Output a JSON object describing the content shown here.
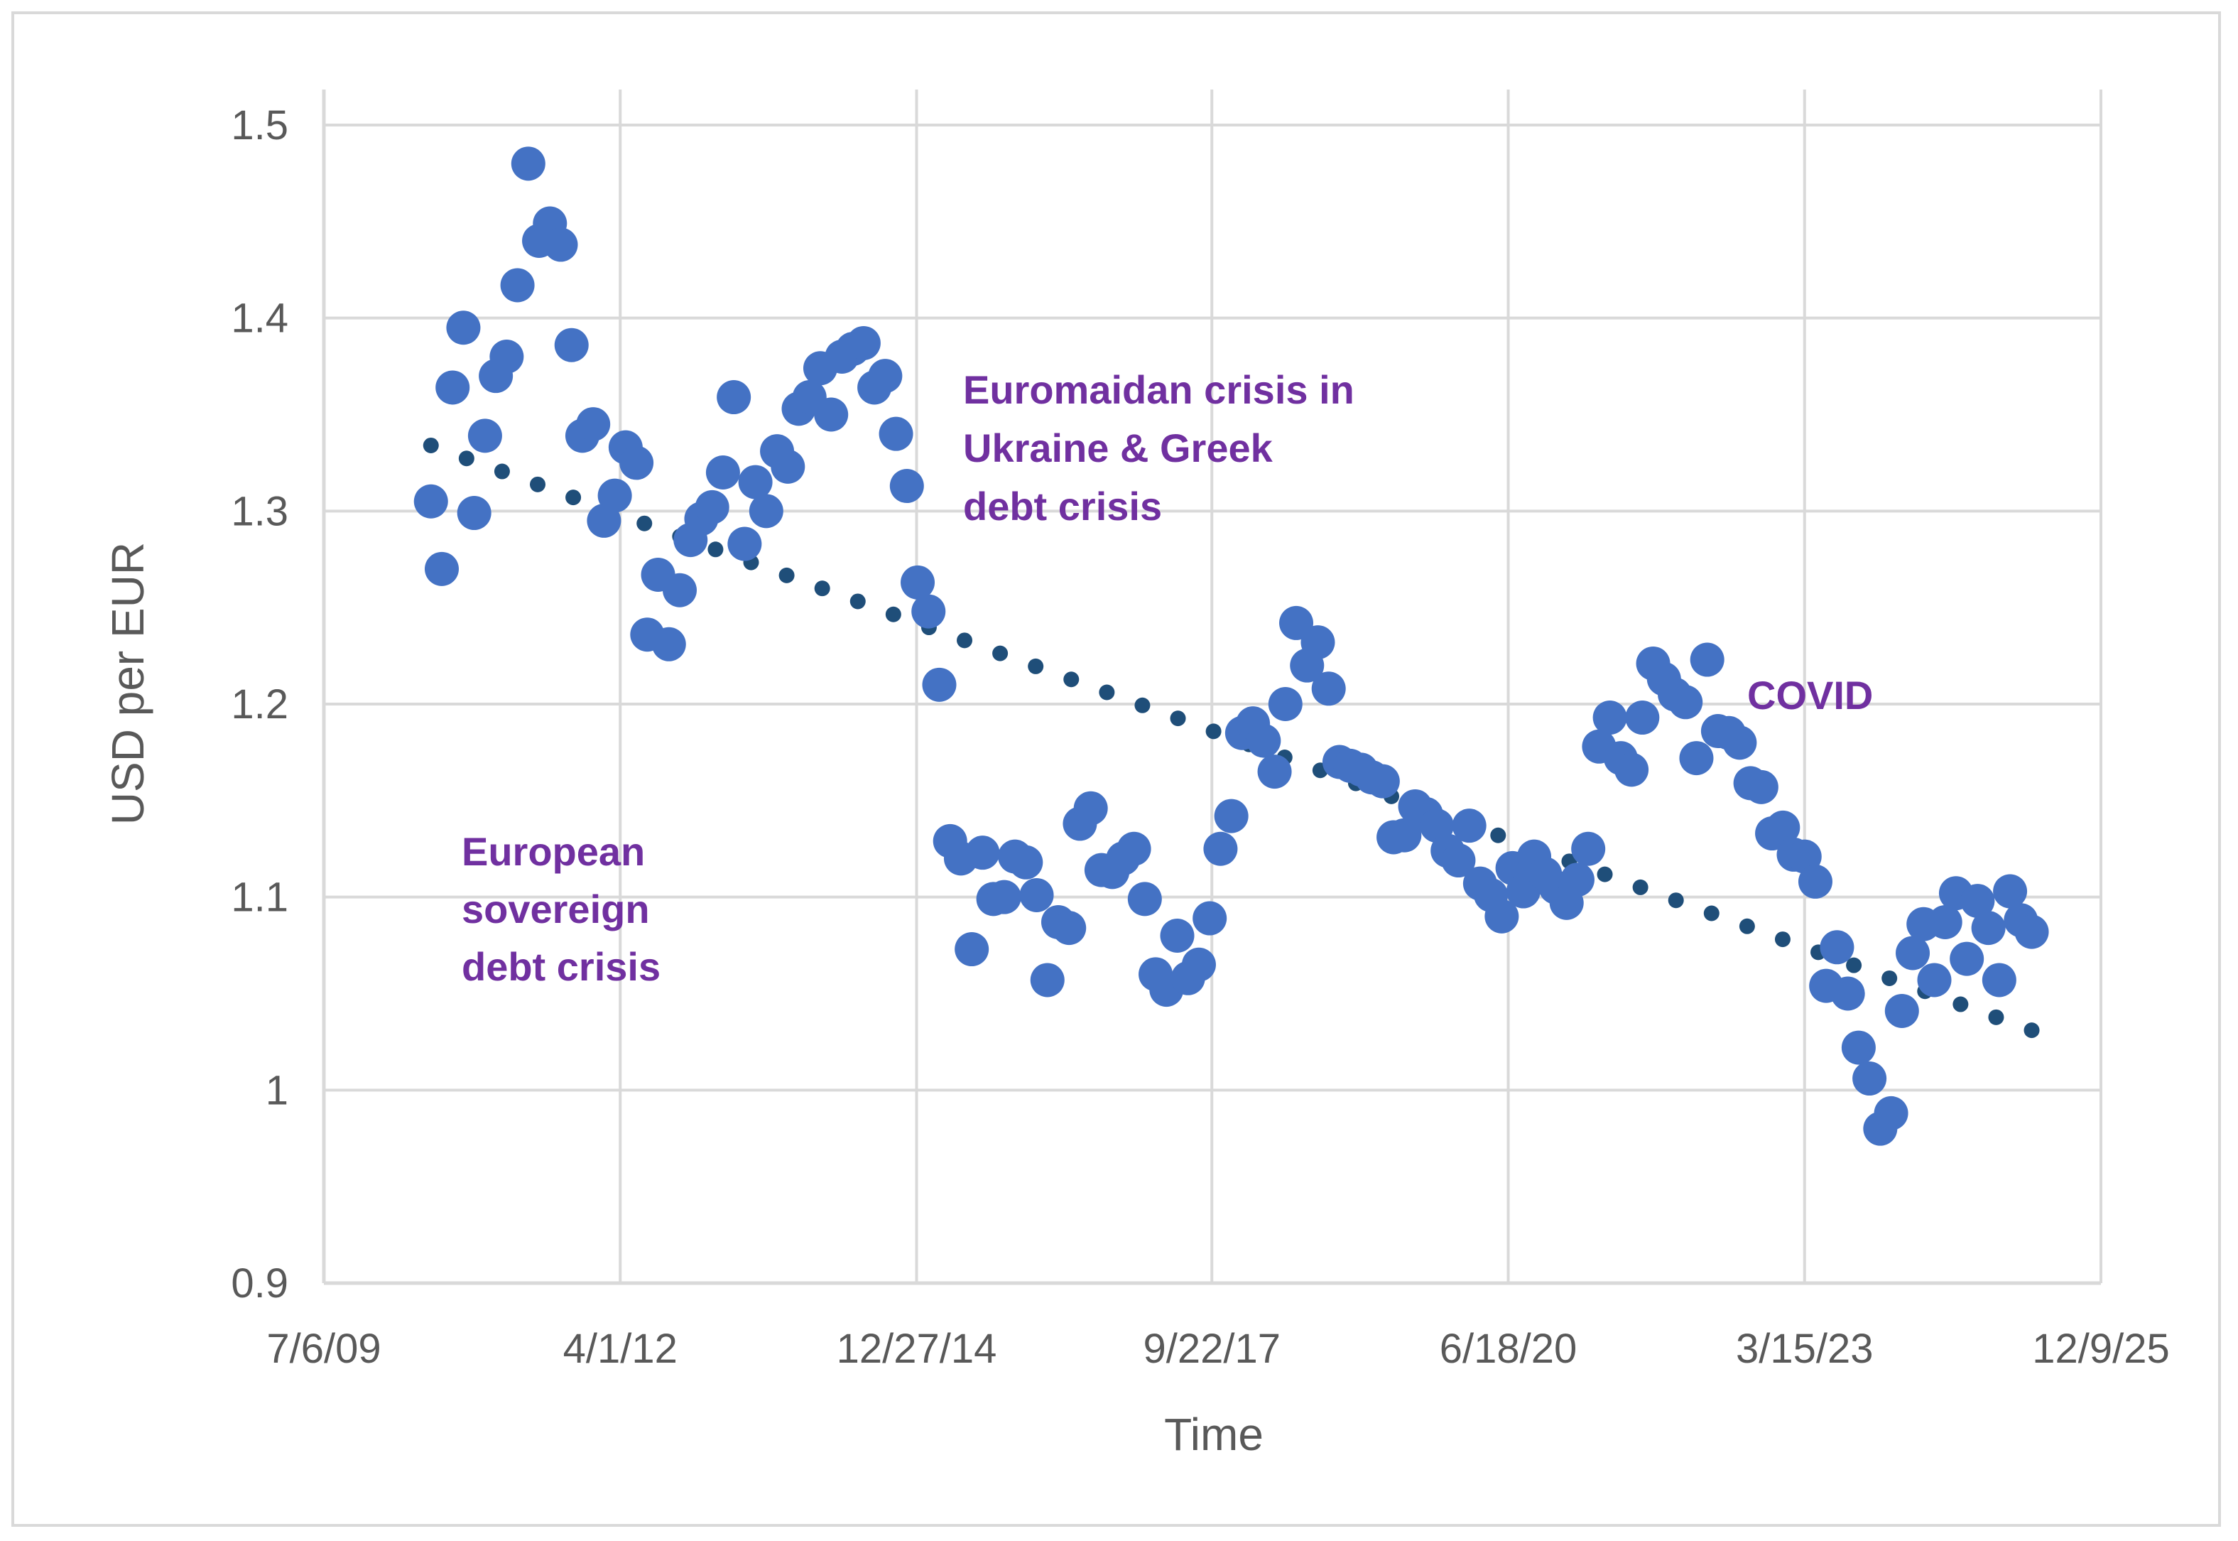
{
  "chart_data": {
    "type": "scatter",
    "title": "",
    "xlabel": "Time",
    "ylabel": "USD per EUR",
    "ylim": [
      0.9,
      1.5
    ],
    "y_ticks": [
      0.9,
      1,
      1.1,
      1.2,
      1.3,
      1.4,
      1.5
    ],
    "y_tick_labels": [
      "0.9",
      "1",
      "1.1",
      "1.2",
      "1.3",
      "1.4",
      "1.5"
    ],
    "x_tick_values": [
      2009.51,
      2012.25,
      2014.99,
      2017.72,
      2020.46,
      2023.2,
      2025.94
    ],
    "x_tick_labels": [
      "7/6/09",
      "4/1/12",
      "12/27/14",
      "9/22/17",
      "6/18/20",
      "3/15/23",
      "12/9/25"
    ],
    "xlim": [
      2009.51,
      2025.94
    ],
    "grid": true,
    "colors": {
      "points": "#4472c4",
      "trend": "#1f4e79",
      "annotation": "#7030a0",
      "grid": "#d9d9d9",
      "text": "#595959"
    },
    "series": [
      {
        "name": "USD per EUR",
        "x": [
          2010.5,
          2010.6,
          2010.7,
          2010.8,
          2010.9,
          2011.0,
          2011.1,
          2011.2,
          2011.3,
          2011.4,
          2011.5,
          2011.6,
          2011.7,
          2011.8,
          2011.9,
          2012.0,
          2012.1,
          2012.2,
          2012.3,
          2012.4,
          2012.5,
          2012.6,
          2012.7,
          2012.8,
          2012.9,
          2013.0,
          2013.1,
          2013.2,
          2013.3,
          2013.4,
          2013.5,
          2013.6,
          2013.7,
          2013.8,
          2013.9,
          2014.0,
          2014.1,
          2014.2,
          2014.3,
          2014.4,
          2014.5,
          2014.6,
          2014.7,
          2014.8,
          2014.9,
          2015.0,
          2015.1,
          2015.2,
          2015.3,
          2015.4,
          2015.5,
          2015.6,
          2015.7,
          2015.8,
          2015.9,
          2016.0,
          2016.1,
          2016.2,
          2016.3,
          2016.4,
          2016.5,
          2016.6,
          2016.7,
          2016.8,
          2016.9,
          2017.0,
          2017.1,
          2017.2,
          2017.3,
          2017.4,
          2017.5,
          2017.6,
          2017.7,
          2017.8,
          2017.9,
          2018.0,
          2018.1,
          2018.2,
          2018.3,
          2018.4,
          2018.5,
          2018.6,
          2018.7,
          2018.8,
          2018.9,
          2019.0,
          2019.1,
          2019.2,
          2019.3,
          2019.4,
          2019.5,
          2019.6,
          2019.7,
          2019.8,
          2019.9,
          2020.0,
          2020.1,
          2020.2,
          2020.3,
          2020.4,
          2020.5,
          2020.6,
          2020.7,
          2020.8,
          2020.9,
          2021.0,
          2021.1,
          2021.2,
          2021.3,
          2021.4,
          2021.5,
          2021.6,
          2021.7,
          2021.8,
          2021.9,
          2022.0,
          2022.1,
          2022.2,
          2022.3,
          2022.4,
          2022.5,
          2022.6,
          2022.7,
          2022.8,
          2022.9,
          2023.0,
          2023.1,
          2023.2,
          2023.3,
          2023.4,
          2023.5,
          2023.6,
          2023.7,
          2023.8,
          2023.9,
          2024.0,
          2024.1,
          2024.2,
          2024.3,
          2024.4,
          2024.5,
          2024.6,
          2024.7,
          2024.8,
          2024.9,
          2025.0,
          2025.1,
          2025.2,
          2025.3
        ],
        "y": [
          1.305,
          1.27,
          1.364,
          1.395,
          1.299,
          1.339,
          1.37,
          1.38,
          1.417,
          1.48,
          1.44,
          1.449,
          1.438,
          1.386,
          1.339,
          1.345,
          1.295,
          1.308,
          1.333,
          1.325,
          1.236,
          1.267,
          1.231,
          1.259,
          1.285,
          1.296,
          1.302,
          1.32,
          1.359,
          1.283,
          1.315,
          1.3,
          1.331,
          1.323,
          1.353,
          1.359,
          1.374,
          1.35,
          1.38,
          1.384,
          1.387,
          1.364,
          1.37,
          1.34,
          1.313,
          1.263,
          1.248,
          1.21,
          1.129,
          1.12,
          1.073,
          1.123,
          1.099,
          1.1,
          1.121,
          1.118,
          1.101,
          1.057,
          1.087,
          1.084,
          1.138,
          1.146,
          1.114,
          1.113,
          1.12,
          1.125,
          1.099,
          1.06,
          1.052,
          1.08,
          1.058,
          1.065,
          1.089,
          1.125,
          1.142,
          1.185,
          1.19,
          1.181,
          1.165,
          1.2,
          1.242,
          1.22,
          1.232,
          1.208,
          1.17,
          1.168,
          1.166,
          1.162,
          1.16,
          1.131,
          1.132,
          1.147,
          1.143,
          1.137,
          1.124,
          1.119,
          1.137,
          1.107,
          1.101,
          1.09,
          1.115,
          1.103,
          1.121,
          1.112,
          1.105,
          1.097,
          1.109,
          1.125,
          1.178,
          1.193,
          1.172,
          1.166,
          1.193,
          1.221,
          1.213,
          1.205,
          1.201,
          1.172,
          1.223,
          1.186,
          1.185,
          1.18,
          1.159,
          1.157,
          1.133,
          1.136,
          1.122,
          1.121,
          1.108,
          1.054,
          1.074,
          1.05,
          1.022,
          1.006,
          0.98,
          0.988,
          1.041,
          1.071,
          1.086,
          1.057,
          1.087,
          1.102,
          1.068,
          1.098,
          1.084,
          1.057,
          1.103,
          1.088,
          1.082
        ]
      },
      {
        "name": "Linear trend",
        "style": "dotted",
        "x": [
          2010.5,
          2025.3
        ],
        "y": [
          1.334,
          1.031
        ]
      }
    ],
    "annotations": [
      {
        "lines": [
          "Euromaidan crisis in",
          "Ukraine & Greek",
          "debt crisis"
        ]
      },
      {
        "lines": [
          "COVID"
        ]
      },
      {
        "lines": [
          "European",
          "sovereign",
          "debt crisis"
        ]
      }
    ]
  }
}
